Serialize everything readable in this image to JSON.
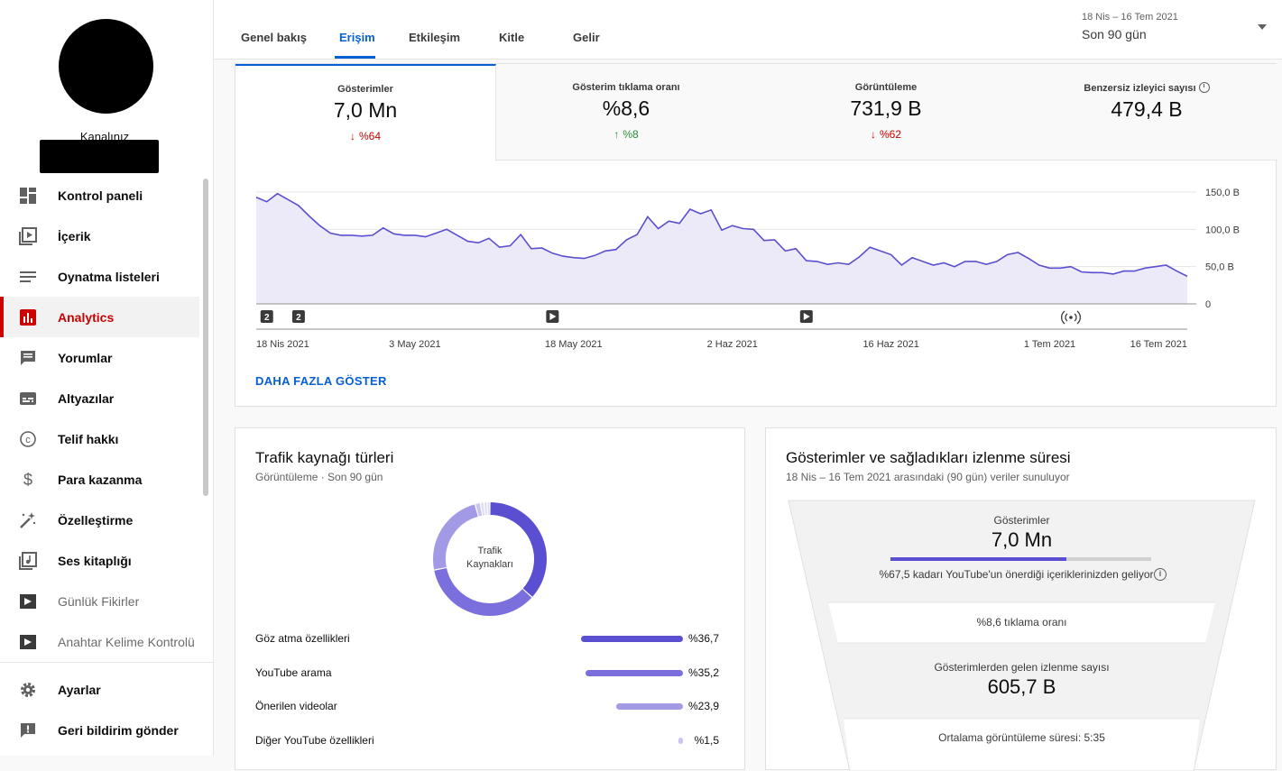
{
  "sidebar": {
    "channel_label": "Kanalınız",
    "items": [
      {
        "label": "Kontrol paneli",
        "icon": "dashboard-icon"
      },
      {
        "label": "İçerik",
        "icon": "content-icon"
      },
      {
        "label": "Oynatma listeleri",
        "icon": "playlist-icon"
      },
      {
        "label": "Analytics",
        "icon": "analytics-icon"
      },
      {
        "label": "Yorumlar",
        "icon": "comments-icon"
      },
      {
        "label": "Altyazılar",
        "icon": "subtitles-icon"
      },
      {
        "label": "Telif hakkı",
        "icon": "copyright-icon"
      },
      {
        "label": "Para kazanma",
        "icon": "dollar-icon"
      },
      {
        "label": "Özelleştirme",
        "icon": "magic-wand-icon"
      },
      {
        "label": "Ses kitaplığı",
        "icon": "audio-library-icon"
      },
      {
        "label": "Günlük Fikirler",
        "icon": "extension-icon"
      },
      {
        "label": "Anahtar Kelime Kontrolü",
        "icon": "extension-icon"
      },
      {
        "label": "Ayarlar",
        "icon": "gear-icon"
      },
      {
        "label": "Geri bildirim gönder",
        "icon": "feedback-icon"
      }
    ]
  },
  "tabs": [
    "Genel bakış",
    "Erişim",
    "Etkileşim",
    "Kitle",
    "Gelir"
  ],
  "date": {
    "range": "18 Nis – 16 Tem 2021",
    "period": "Son 90 gün"
  },
  "metrics": [
    {
      "label": "Gösterimler",
      "value": "7,0 Mn",
      "delta": "%64",
      "dir": "down"
    },
    {
      "label": "Gösterim tıklama oranı",
      "value": "%8,6",
      "delta": "%8",
      "dir": "up"
    },
    {
      "label": "Görüntüleme",
      "value": "731,9 B",
      "delta": "%62",
      "dir": "down"
    },
    {
      "label": "Benzersiz izleyici sayısı",
      "value": "479,4 B",
      "delta": "",
      "dir": "none"
    }
  ],
  "show_more": "DAHA FAZLA GÖSTER",
  "chart_data": {
    "type": "area",
    "series": [
      {
        "values": [
          143,
          137,
          148,
          140,
          132,
          118,
          105,
          95,
          92,
          92,
          91,
          92,
          102,
          94,
          92,
          92,
          90,
          95,
          100,
          92,
          84,
          82,
          88,
          76,
          78,
          93,
          74,
          75,
          68,
          64,
          62,
          61,
          65,
          71,
          73,
          86,
          93,
          117,
          101,
          111,
          108,
          127,
          121,
          126,
          99,
          105,
          101,
          100,
          85,
          86,
          71,
          74,
          58,
          57,
          53,
          55,
          53,
          63,
          76,
          71,
          66,
          52,
          62,
          57,
          52,
          55,
          50,
          57,
          57,
          53,
          57,
          66,
          69,
          61,
          52,
          48,
          48,
          50,
          43,
          42,
          42,
          40,
          44,
          44,
          48,
          50,
          52,
          44,
          37
        ]
      }
    ],
    "x_ticks": [
      "18 Nis 2021",
      "3 May 2021",
      "18 May 2021",
      "2 Haz 2021",
      "16 Haz 2021",
      "1 Tem 2021",
      "16 Tem 2021"
    ],
    "y_ticks": [
      "150,0 B",
      "100,0 B",
      "50,0 B",
      "0"
    ],
    "ylim": [
      0,
      150
    ],
    "markers": [
      {
        "day": 1,
        "label": "2",
        "icon": "publish-count-icon"
      },
      {
        "day": 4,
        "label": "2",
        "icon": "publish-count-icon"
      },
      {
        "day": 28,
        "label": "",
        "icon": "video-play-icon"
      },
      {
        "day": 52,
        "label": "",
        "icon": "video-play-icon"
      },
      {
        "day": 77,
        "label": "",
        "icon": "live-stream-icon"
      }
    ]
  },
  "traffic": {
    "title": "Trafik kaynağı türleri",
    "subtitle": "Görüntüleme · Son 90 gün",
    "donut_center": "Trafik Kaynakları",
    "sources": [
      {
        "label": "Göz atma özellikleri",
        "value": 36.7,
        "display": "%36,7",
        "color": "#5a4fd0"
      },
      {
        "label": "YouTube arama",
        "value": 35.2,
        "display": "%35,2",
        "color": "#7a6fdc"
      },
      {
        "label": "Önerilen videolar",
        "value": 23.9,
        "display": "%23,9",
        "color": "#a39ae6"
      },
      {
        "label": "Diğer YouTube özellikleri",
        "value": 1.5,
        "display": "%1,5",
        "color": "#c9c4f0"
      }
    ]
  },
  "funnel": {
    "title": "Gösterimler ve sağladıkları izlenme süresi",
    "subtitle": "18 Nis – 16 Tem 2021 arasındaki (90 gün) veriler sunuluyor",
    "impressions_label": "Gösterimler",
    "impressions_value": "7,0 Mn",
    "recommended_share": 67.5,
    "recommended_text": "%67,5 kadarı YouTube'un önerdiği içeriklerinizden geliyor",
    "ctr_text": "%8,6 tıklama oranı",
    "views_label": "Gösterimlerden gelen izlenme sayısı",
    "views_value": "605,7 B",
    "avg_text": "Ortalama görüntüleme süresi: 5:35"
  }
}
